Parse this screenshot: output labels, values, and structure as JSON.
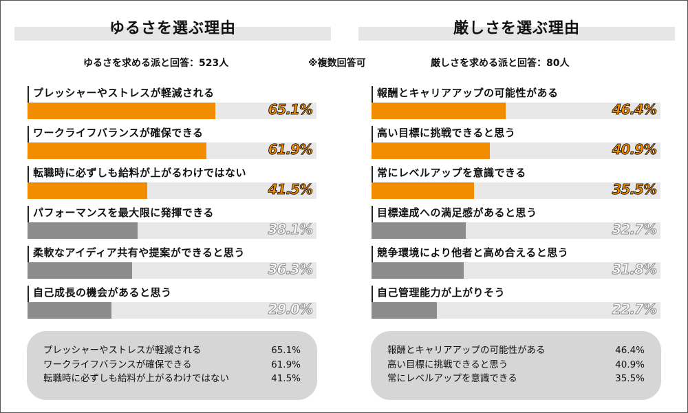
{
  "note": "※複数回答可",
  "colors": {
    "highlight": "#f28c00",
    "normal": "#8c8c8c",
    "track": "#e8e8e8"
  },
  "chart_data": [
    {
      "type": "bar",
      "title": "ゆるさを選ぶ理由",
      "subtitle": "ゆるさを求める派と回答：523人",
      "categories": [
        "プレッシャーやストレスが軽減される",
        "ワークライフバランスが確保できる",
        "転職時に必ずしも給料が上がるわけではない",
        "パフォーマンスを最大限に発揮できる",
        "柔軟なアイディア共有や提案ができると思う",
        "自己成長の機会があると思う"
      ],
      "values": [
        65.1,
        61.9,
        41.5,
        38.1,
        36.3,
        29.0
      ],
      "value_labels": [
        "65.1%",
        "61.9%",
        "41.5%",
        "38.1%",
        "36.3%",
        "29.0%"
      ],
      "highlighted": [
        true,
        true,
        true,
        false,
        false,
        false
      ],
      "ylim": [
        0,
        100
      ],
      "summary": [
        {
          "label": "プレッシャーやストレスが軽減される",
          "value": "65.1%"
        },
        {
          "label": "ワークライフバランスが確保できる",
          "value": "61.9%"
        },
        {
          "label": "転職時に必ずしも給料が上がるわけではない",
          "value": "41.5%"
        }
      ]
    },
    {
      "type": "bar",
      "title": "厳しさを選ぶ理由",
      "subtitle": "厳しさを求める派と回答：80人",
      "categories": [
        "報酬とキャリアアップの可能性がある",
        "高い目標に挑戦できると思う",
        "常にレベルアップを意識できる",
        "目標達成への満足感があると思う",
        "競争環境により他者と高め合えると思う",
        "自己管理能力が上がりそう"
      ],
      "values": [
        46.4,
        40.9,
        35.5,
        32.7,
        31.8,
        22.7
      ],
      "value_labels": [
        "46.4%",
        "40.9%",
        "35.5%",
        "32.7%",
        "31.8%",
        "22.7%"
      ],
      "highlighted": [
        true,
        true,
        true,
        false,
        false,
        false
      ],
      "ylim": [
        0,
        100
      ],
      "summary": [
        {
          "label": "報酬とキャリアアップの可能性がある",
          "value": "46.4%"
        },
        {
          "label": "高い目標に挑戦できると思う",
          "value": "40.9%"
        },
        {
          "label": "常にレベルアップを意識できる",
          "value": "35.5%"
        }
      ]
    }
  ]
}
